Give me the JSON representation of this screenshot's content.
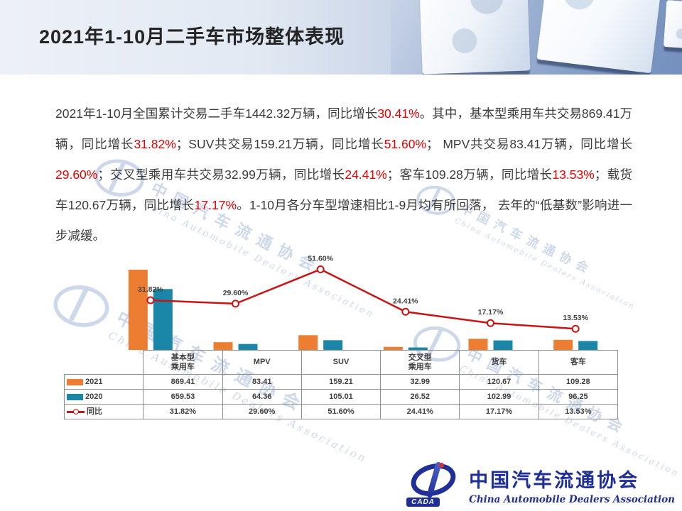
{
  "header": {
    "title": "2021年1-10月二手车市场整体表现"
  },
  "paragraph": {
    "segments": [
      {
        "text": "2021年1-10月全国累计交易二手车1442.32万辆，同比增长",
        "red": false
      },
      {
        "text": "30.41%",
        "red": true
      },
      {
        "text": "。其中，基本型乘用车共交易869.41万辆，同比增长",
        "red": false
      },
      {
        "text": "31.82%",
        "red": true
      },
      {
        "text": "；SUV共交易159.21万辆，同比增长",
        "red": false
      },
      {
        "text": "51.60%",
        "red": true
      },
      {
        "text": "； MPV共交易83.41万辆，同比增长",
        "red": false
      },
      {
        "text": "29.60%",
        "red": true
      },
      {
        "text": "；交叉型乘用车共交易32.99万辆，同比增长",
        "red": false
      },
      {
        "text": "24.41%",
        "red": true
      },
      {
        "text": "；客车109.28万辆，同比增长",
        "red": false
      },
      {
        "text": "13.53%",
        "red": true
      },
      {
        "text": "；载货车120.67万辆，同比增长",
        "red": false
      },
      {
        "text": "17.17%",
        "red": true
      },
      {
        "text": "。1-10月各分车型增速相比1-9月均有所回落， 去年的“低基数”影响进一步减缓。",
        "red": false
      }
    ],
    "highlight_color": "#e60000",
    "text_color": "#3b3b3b"
  },
  "chart_data": {
    "type": "bar",
    "subtype": "bar+line-combo with data table",
    "title": "",
    "xlabel": "",
    "ylabel": "",
    "axes_visible": false,
    "bar_axis_max": 1100,
    "pct_axis_max": 65,
    "legend_position": "table-left-column",
    "categories": [
      [
        "基本型",
        "乘用车"
      ],
      [
        "MPV"
      ],
      [
        "SUV"
      ],
      [
        "交叉型",
        "乘用车"
      ],
      [
        "货车"
      ],
      [
        "客车"
      ]
    ],
    "series": [
      {
        "name": "2021",
        "type": "bar",
        "color": "#ED7D31",
        "values": [
          869.41,
          83.41,
          159.21,
          32.99,
          120.67,
          109.28
        ]
      },
      {
        "name": "2020",
        "type": "bar",
        "color": "#1B87A8",
        "values": [
          659.53,
          64.36,
          105.01,
          26.52,
          102.99,
          96.25
        ]
      },
      {
        "name": "同比",
        "type": "line",
        "color": "#C81414",
        "values": [
          31.82,
          29.6,
          51.6,
          24.41,
          17.17,
          13.53
        ],
        "labels": [
          "31.82%",
          "29.60%",
          "51.60%",
          "24.41%",
          "17.17%",
          "13.53%"
        ]
      }
    ]
  },
  "watermark": {
    "cn": "中国汽车流通协会",
    "en": "China Automobile Dealers Association"
  },
  "footer_logo": {
    "badge": "CADA",
    "org_cn": "中国汽车流通协会",
    "org_en": "China Automobile Dealers Association"
  }
}
